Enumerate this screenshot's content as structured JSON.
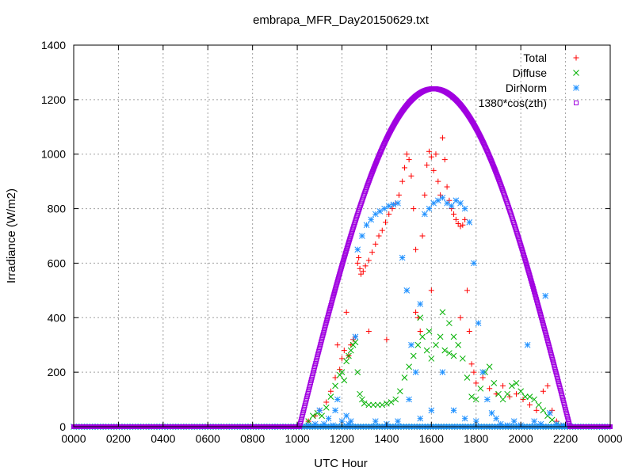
{
  "chart_data": {
    "type": "scatter",
    "title": "embrapa_MFR_Day20150629.txt",
    "xlabel": "UTC Hour",
    "ylabel": "Irradiance (W/m2)",
    "xlim": [
      0,
      24
    ],
    "ylim": [
      0,
      1400
    ],
    "grid": true,
    "legend_position": "top-right",
    "xticks": [
      {
        "value": 0,
        "label": "0000"
      },
      {
        "value": 2,
        "label": "0200"
      },
      {
        "value": 4,
        "label": "0400"
      },
      {
        "value": 6,
        "label": "0600"
      },
      {
        "value": 8,
        "label": "0800"
      },
      {
        "value": 10,
        "label": "1000"
      },
      {
        "value": 12,
        "label": "1200"
      },
      {
        "value": 14,
        "label": "1400"
      },
      {
        "value": 16,
        "label": "1600"
      },
      {
        "value": 18,
        "label": "1800"
      },
      {
        "value": 20,
        "label": "2000"
      },
      {
        "value": 22,
        "label": "2200"
      },
      {
        "value": 24,
        "label": "0000"
      }
    ],
    "yticks": [
      {
        "value": 0,
        "label": "0"
      },
      {
        "value": 200,
        "label": "200"
      },
      {
        "value": 400,
        "label": "400"
      },
      {
        "value": 600,
        "label": "600"
      },
      {
        "value": 800,
        "label": "800"
      },
      {
        "value": 1000,
        "label": "1000"
      },
      {
        "value": 1200,
        "label": "1200"
      },
      {
        "value": 1400,
        "label": "1400"
      }
    ],
    "series": [
      {
        "name": "Total",
        "color": "#ff0000",
        "marker": "plus",
        "points": [
          [
            10.5,
            20
          ],
          [
            10.8,
            40
          ],
          [
            11.0,
            60
          ],
          [
            11.3,
            90
          ],
          [
            11.5,
            130
          ],
          [
            11.7,
            180
          ],
          [
            11.9,
            210
          ],
          [
            12.0,
            250
          ],
          [
            12.1,
            280
          ],
          [
            12.3,
            260
          ],
          [
            12.4,
            300
          ],
          [
            12.5,
            320
          ],
          [
            12.6,
            330
          ],
          [
            12.7,
            600
          ],
          [
            12.75,
            620
          ],
          [
            12.8,
            580
          ],
          [
            12.85,
            560
          ],
          [
            12.95,
            570
          ],
          [
            13.05,
            590
          ],
          [
            13.2,
            610
          ],
          [
            13.35,
            640
          ],
          [
            13.5,
            670
          ],
          [
            13.65,
            700
          ],
          [
            13.8,
            720
          ],
          [
            13.95,
            750
          ],
          [
            14.1,
            780
          ],
          [
            14.25,
            800
          ],
          [
            14.4,
            820
          ],
          [
            14.55,
            850
          ],
          [
            14.7,
            900
          ],
          [
            14.8,
            950
          ],
          [
            14.9,
            1000
          ],
          [
            15.0,
            980
          ],
          [
            15.1,
            920
          ],
          [
            15.2,
            800
          ],
          [
            15.3,
            650
          ],
          [
            15.4,
            400
          ],
          [
            15.5,
            350
          ],
          [
            15.6,
            700
          ],
          [
            15.7,
            850
          ],
          [
            15.8,
            960
          ],
          [
            15.9,
            1010
          ],
          [
            16.0,
            990
          ],
          [
            16.1,
            940
          ],
          [
            16.2,
            1000
          ],
          [
            16.3,
            900
          ],
          [
            16.4,
            850
          ],
          [
            16.5,
            1060
          ],
          [
            16.6,
            980
          ],
          [
            16.7,
            880
          ],
          [
            16.8,
            830
          ],
          [
            16.9,
            800
          ],
          [
            17.0,
            780
          ],
          [
            17.1,
            760
          ],
          [
            17.2,
            745
          ],
          [
            17.3,
            735
          ],
          [
            17.4,
            740
          ],
          [
            17.5,
            760
          ],
          [
            17.6,
            500
          ],
          [
            17.7,
            350
          ],
          [
            17.8,
            230
          ],
          [
            17.9,
            200
          ],
          [
            18.0,
            160
          ],
          [
            18.3,
            180
          ],
          [
            18.6,
            140
          ],
          [
            18.9,
            120
          ],
          [
            19.2,
            150
          ],
          [
            19.5,
            110
          ],
          [
            19.8,
            120
          ],
          [
            20.1,
            100
          ],
          [
            20.4,
            80
          ],
          [
            20.7,
            60
          ],
          [
            21.0,
            130
          ],
          [
            21.2,
            150
          ],
          [
            21.4,
            60
          ],
          [
            21.6,
            20
          ],
          [
            21.8,
            5
          ],
          [
            14.0,
            320
          ],
          [
            13.2,
            350
          ],
          [
            12.2,
            420
          ],
          [
            11.8,
            300
          ],
          [
            15.3,
            420
          ],
          [
            16.0,
            500
          ],
          [
            17.3,
            400
          ]
        ]
      },
      {
        "name": "Diffuse",
        "color": "#00b000",
        "marker": "cross",
        "points": [
          [
            10.5,
            20
          ],
          [
            10.7,
            40
          ],
          [
            10.9,
            50
          ],
          [
            11.1,
            40
          ],
          [
            11.3,
            70
          ],
          [
            11.5,
            110
          ],
          [
            11.7,
            150
          ],
          [
            11.9,
            190
          ],
          [
            12.0,
            200
          ],
          [
            12.1,
            170
          ],
          [
            12.2,
            240
          ],
          [
            12.3,
            260
          ],
          [
            12.4,
            280
          ],
          [
            12.5,
            300
          ],
          [
            12.6,
            310
          ],
          [
            12.7,
            200
          ],
          [
            12.8,
            120
          ],
          [
            12.9,
            100
          ],
          [
            13.0,
            85
          ],
          [
            13.2,
            80
          ],
          [
            13.4,
            80
          ],
          [
            13.6,
            80
          ],
          [
            13.8,
            80
          ],
          [
            14.0,
            85
          ],
          [
            14.2,
            90
          ],
          [
            14.4,
            100
          ],
          [
            14.6,
            130
          ],
          [
            14.8,
            180
          ],
          [
            15.0,
            220
          ],
          [
            15.2,
            260
          ],
          [
            15.4,
            300
          ],
          [
            15.6,
            330
          ],
          [
            15.8,
            280
          ],
          [
            16.0,
            250
          ],
          [
            16.2,
            300
          ],
          [
            16.4,
            330
          ],
          [
            16.6,
            280
          ],
          [
            16.8,
            270
          ],
          [
            17.0,
            330
          ],
          [
            17.2,
            300
          ],
          [
            17.4,
            250
          ],
          [
            17.6,
            180
          ],
          [
            17.8,
            110
          ],
          [
            18.0,
            100
          ],
          [
            18.2,
            140
          ],
          [
            18.4,
            200
          ],
          [
            18.6,
            220
          ],
          [
            18.8,
            160
          ],
          [
            19.0,
            120
          ],
          [
            19.2,
            100
          ],
          [
            19.4,
            120
          ],
          [
            19.6,
            150
          ],
          [
            19.8,
            160
          ],
          [
            20.0,
            130
          ],
          [
            20.2,
            110
          ],
          [
            20.4,
            110
          ],
          [
            20.6,
            100
          ],
          [
            20.8,
            80
          ],
          [
            21.0,
            60
          ],
          [
            21.2,
            40
          ],
          [
            21.4,
            25
          ],
          [
            21.6,
            10
          ],
          [
            21.8,
            3
          ],
          [
            15.5,
            400
          ],
          [
            16.5,
            420
          ],
          [
            17.0,
            260
          ],
          [
            15.9,
            350
          ],
          [
            16.8,
            380
          ]
        ]
      },
      {
        "name": "DirNorm",
        "color": "#1e90ff",
        "marker": "star",
        "points": [
          [
            10.5,
            5
          ],
          [
            10.8,
            10
          ],
          [
            11.0,
            60
          ],
          [
            11.2,
            10
          ],
          [
            11.4,
            30
          ],
          [
            11.6,
            5
          ],
          [
            11.8,
            100
          ],
          [
            12.0,
            20
          ],
          [
            12.2,
            40
          ],
          [
            12.4,
            20
          ],
          [
            12.6,
            330
          ],
          [
            12.7,
            650
          ],
          [
            12.9,
            700
          ],
          [
            13.1,
            740
          ],
          [
            13.3,
            760
          ],
          [
            13.5,
            780
          ],
          [
            13.7,
            790
          ],
          [
            13.9,
            800
          ],
          [
            14.1,
            810
          ],
          [
            14.3,
            815
          ],
          [
            14.5,
            820
          ],
          [
            14.7,
            620
          ],
          [
            14.9,
            500
          ],
          [
            15.1,
            300
          ],
          [
            15.3,
            200
          ],
          [
            15.5,
            450
          ],
          [
            15.7,
            780
          ],
          [
            15.9,
            800
          ],
          [
            16.1,
            820
          ],
          [
            16.3,
            830
          ],
          [
            16.5,
            840
          ],
          [
            16.7,
            820
          ],
          [
            16.9,
            810
          ],
          [
            17.1,
            830
          ],
          [
            17.3,
            820
          ],
          [
            17.5,
            800
          ],
          [
            17.7,
            750
          ],
          [
            17.9,
            600
          ],
          [
            18.1,
            380
          ],
          [
            18.3,
            200
          ],
          [
            18.5,
            100
          ],
          [
            18.7,
            50
          ],
          [
            18.9,
            30
          ],
          [
            19.1,
            10
          ],
          [
            19.4,
            5
          ],
          [
            19.7,
            20
          ],
          [
            20.0,
            5
          ],
          [
            20.3,
            300
          ],
          [
            20.6,
            20
          ],
          [
            20.9,
            10
          ],
          [
            21.1,
            480
          ],
          [
            21.3,
            50
          ],
          [
            21.6,
            10
          ],
          [
            21.9,
            5
          ],
          [
            13.5,
            20
          ],
          [
            14.0,
            10
          ],
          [
            14.5,
            20
          ],
          [
            15.0,
            100
          ],
          [
            15.5,
            30
          ],
          [
            16.0,
            60
          ],
          [
            16.5,
            200
          ],
          [
            17.0,
            60
          ],
          [
            17.5,
            30
          ],
          [
            18.0,
            20
          ],
          [
            12.3,
            10
          ],
          [
            11.7,
            60
          ]
        ]
      },
      {
        "name": "1380*cos(zth)",
        "color": "#a000e0",
        "marker": "square",
        "curve": {
          "start": 10.1,
          "end": 22.2,
          "peak_x": 16.1,
          "peak_y": 1240
        }
      }
    ]
  }
}
